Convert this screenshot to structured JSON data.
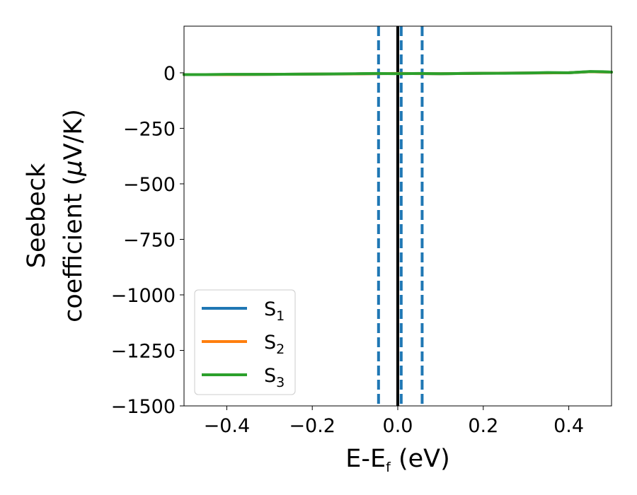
{
  "chart_data": {
    "type": "line",
    "xlabel": {
      "main": "E-E",
      "sub": "f",
      "unit": " (eV)"
    },
    "ylabel": {
      "line1": "Seebeck",
      "line2": "coefficient  (",
      "mu": "μ",
      "line2_end": "V/K)"
    },
    "xlim": [
      -0.5,
      0.5
    ],
    "ylim": [
      -1500,
      210
    ],
    "xticks": [
      -0.4,
      -0.2,
      0.0,
      0.2,
      0.4
    ],
    "xtick_labels": [
      "−0.4",
      "−0.2",
      "0.0",
      "0.2",
      "0.4"
    ],
    "yticks": [
      0,
      -250,
      -500,
      -750,
      -1000,
      -1250,
      -1500
    ],
    "ytick_labels": [
      "0",
      "−250",
      "−500",
      "−750",
      "−1000",
      "−1250",
      "−1500"
    ],
    "grid": false,
    "legend_position": "lower-left",
    "series": [
      {
        "name": "S",
        "sub": "1",
        "color": "#1f77b4",
        "x": [
          -0.5,
          -0.4,
          -0.3,
          -0.2,
          -0.1,
          0.0,
          0.1,
          0.2,
          0.3,
          0.4,
          0.45,
          0.5
        ],
        "y": [
          -8,
          -8,
          -7,
          -6,
          -5,
          -3,
          -4,
          -2,
          -1,
          0,
          5,
          3
        ]
      },
      {
        "name": "S",
        "sub": "2",
        "color": "#ff7f0e",
        "x": [
          -0.5,
          -0.4,
          -0.3,
          -0.2,
          -0.1,
          0.0,
          0.1,
          0.2,
          0.3,
          0.4,
          0.45,
          0.5
        ],
        "y": [
          -8,
          -8,
          -7,
          -6,
          -5,
          -3,
          -4,
          -2,
          -1,
          0,
          5,
          3
        ]
      },
      {
        "name": "S",
        "sub": "3",
        "color": "#2ca02c",
        "x": [
          -0.5,
          -0.45,
          -0.4,
          -0.3,
          -0.2,
          -0.1,
          -0.05,
          0.0,
          0.05,
          0.1,
          0.15,
          0.2,
          0.25,
          0.3,
          0.35,
          0.4,
          0.45,
          0.48,
          0.5
        ],
        "y": [
          -8,
          -8,
          -7,
          -7,
          -6,
          -4,
          -3,
          -4,
          -3,
          -4,
          -3,
          -2,
          -2,
          -1,
          1,
          0,
          6,
          5,
          3
        ]
      }
    ],
    "vlines": [
      {
        "x": 0.0,
        "color": "#000000",
        "style": "solid"
      },
      {
        "x": -0.045,
        "color": "#1f77b4",
        "style": "dashed"
      },
      {
        "x": 0.008,
        "color": "#1f77b4",
        "style": "dashed"
      },
      {
        "x": 0.057,
        "color": "#1f77b4",
        "style": "dashed"
      }
    ]
  }
}
